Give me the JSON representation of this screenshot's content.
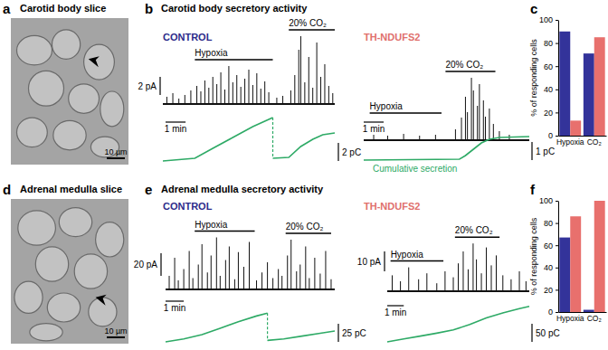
{
  "figure": {
    "image_panels": [
      {
        "letter": "a",
        "title": "Carotid body slice",
        "scale_bar": "10 µm"
      },
      {
        "letter": "d",
        "title": "Adrenal medulla slice",
        "scale_bar": "10 µm"
      }
    ],
    "trace_panels": [
      {
        "letter": "b",
        "title": "Carotid body secretory activity",
        "traces": [
          {
            "condition": "CONTROL",
            "color": "#2b2b8a",
            "xlim": [
              0,
              8.6
            ],
            "ylim": [
              0,
              9
            ],
            "stimuli": [
              {
                "label": "Hypoxia",
                "start": 1.6,
                "end": 5.5
              },
              {
                "label": "20% CO₂",
                "start": 6.3,
                "end": 8.6
              }
            ],
            "spike_times": [
              0.2,
              0.5,
              0.8,
              1.1,
              1.4,
              1.7,
              1.9,
              2.1,
              2.3,
              2.5,
              2.7,
              2.9,
              3.1,
              3.3,
              3.5,
              3.7,
              3.9,
              4.1,
              4.3,
              4.5,
              4.7,
              4.9,
              5.1,
              5.3,
              5.7,
              6.0,
              6.4,
              6.6,
              6.8,
              6.9,
              7.1,
              7.3,
              7.5,
              7.7,
              7.9,
              8.1,
              8.3,
              8.5
            ],
            "spike_amplitudes": [
              0.8,
              1.2,
              0.6,
              1.0,
              1.5,
              2.0,
              1.4,
              2.6,
              1.8,
              3.0,
              2.2,
              3.5,
              1.6,
              4.2,
              2.4,
              3.2,
              1.9,
              2.8,
              3.8,
              2.1,
              3.4,
              1.7,
              2.5,
              1.3,
              0.7,
              0.9,
              1.5,
              3.2,
              6.0,
              7.5,
              2.4,
              5.2,
              1.8,
              6.8,
              3.0,
              4.4,
              2.0,
              1.2
            ],
            "cumulative": {
              "x": [
                0,
                1.6,
                2.5,
                3.5,
                4.5,
                5.5,
                null,
                5.5,
                6.3,
                6.9,
                7.5,
                8.0,
                8.6
              ],
              "y": [
                0,
                0.3,
                1.4,
                2.6,
                3.8,
                4.8,
                null,
                0.3,
                0.4,
                1.6,
                2.4,
                2.9,
                3.1
              ],
              "ylim": [
                0,
                6
              ],
              "color": "#2eaa66"
            },
            "amplitude_scale": {
              "value": 2,
              "label": "2 pA"
            },
            "time_scale": {
              "value": 1,
              "label": "1 min"
            },
            "charge_scale": {
              "value": 2,
              "label": "2 pC"
            }
          },
          {
            "condition": "TH-NDUFS2",
            "color": "#e0706c",
            "xlim": [
              0,
              8.3
            ],
            "ylim": [
              0,
              9
            ],
            "stimuli": [
              {
                "label": "Hypoxia",
                "start": 0.3,
                "end": 3.9
              },
              {
                "label": "20% CO₂",
                "start": 4.1,
                "end": 6.6
              }
            ],
            "spike_times": [
              0.5,
              1.2,
              2.0,
              2.8,
              3.6,
              4.6,
              4.9,
              5.1,
              5.2,
              5.4,
              5.5,
              5.7,
              5.8,
              6.0,
              6.1,
              6.3,
              6.5,
              6.8,
              7.3
            ],
            "spike_amplitudes": [
              0.6,
              0.5,
              0.7,
              0.5,
              0.6,
              1.2,
              2.5,
              4.8,
              3.1,
              6.9,
              5.5,
              3.8,
              6.2,
              4.4,
              2.6,
              3.5,
              1.8,
              1.0,
              0.6
            ],
            "cumulative": {
              "x": [
                0,
                4.8,
                5.1,
                5.5,
                5.9,
                6.3,
                6.8,
                8.3
              ],
              "y": [
                0,
                0.05,
                0.25,
                0.6,
                0.95,
                1.15,
                1.25,
                1.3
              ],
              "ylim": [
                0,
                2
              ],
              "color": "#2eaa66",
              "label": "Cumulative secretion"
            },
            "time_scale": {
              "value": 1,
              "label": "1 min"
            },
            "charge_scale": {
              "value": 1,
              "label": "1 pC"
            }
          }
        ]
      },
      {
        "letter": "e",
        "title": "Adrenal medulla secretory activity",
        "traces": [
          {
            "condition": "CONTROL",
            "color": "#2b2b8a",
            "xlim": [
              0,
              9.3
            ],
            "ylim": [
              0,
              60
            ],
            "stimuli": [
              {
                "label": "Hypoxia",
                "start": 1.6,
                "end": 4.9
              },
              {
                "label": "20% CO₂",
                "start": 6.6,
                "end": 9.1
              }
            ],
            "spike_times": [
              0.2,
              0.5,
              0.7,
              1.0,
              1.3,
              1.5,
              1.8,
              2.0,
              2.3,
              2.5,
              2.8,
              3.0,
              3.3,
              3.5,
              3.8,
              4.0,
              4.3,
              4.6,
              5.0,
              5.3,
              5.6,
              5.9,
              6.2,
              6.4,
              6.7,
              6.9,
              7.2,
              7.4,
              7.7,
              7.9,
              8.2,
              8.5,
              8.8,
              9.1
            ],
            "spike_amplitudes": [
              12,
              28,
              8,
              18,
              34,
              10,
              22,
              40,
              15,
              30,
              46,
              12,
              26,
              38,
              9,
              33,
              20,
              42,
              8,
              15,
              24,
              10,
              18,
              12,
              30,
              44,
              16,
              22,
              38,
              10,
              28,
              14,
              34,
              9
            ],
            "cumulative": {
              "x": [
                0,
                1.0,
                2.0,
                3.0,
                4.0,
                5.0,
                5.6,
                null,
                5.6,
                6.5,
                7.5,
                8.5,
                9.3
              ],
              "y": [
                0,
                4,
                10,
                19,
                28,
                36,
                40,
                null,
                2,
                4,
                8,
                12,
                15
              ],
              "ylim": [
                0,
                44
              ],
              "color": "#2eaa66"
            },
            "amplitude_scale": {
              "value": 20,
              "label": "20 pA"
            },
            "time_scale": {
              "value": 1,
              "label": "1 min"
            },
            "charge_scale": {
              "value": 25,
              "label": "25 pC"
            }
          },
          {
            "condition": "TH-NDUFS2",
            "color": "#e0706c",
            "xlim": [
              0,
              8.6
            ],
            "ylim": [
              0,
              30
            ],
            "stimuli": [
              {
                "label": "Hypoxia",
                "start": 0.2,
                "end": 3.4
              },
              {
                "label": "20% CO₂",
                "start": 4.1,
                "end": 6.8
              }
            ],
            "spike_times": [
              0.3,
              0.8,
              1.3,
              1.9,
              2.4,
              3.0,
              3.5,
              4.0,
              4.3,
              4.6,
              4.9,
              5.2,
              5.4,
              5.7,
              6.0,
              6.3,
              6.6,
              7.0,
              7.5,
              8.0,
              8.4
            ],
            "spike_amplitudes": [
              8,
              5,
              12,
              6,
              9,
              4,
              10,
              7,
              14,
              20,
              11,
              24,
              16,
              9,
              22,
              13,
              18,
              8,
              6,
              10,
              5
            ],
            "cumulative": {
              "x": [
                0,
                1.0,
                2.0,
                3.0,
                4.0,
                5.0,
                6.0,
                7.0,
                8.0,
                8.6
              ],
              "y": [
                0,
                8,
                16,
                24,
                33,
                48,
                66,
                80,
                92,
                98
              ],
              "ylim": [
                0,
                120
              ],
              "color": "#2eaa66"
            },
            "amplitude_scale": {
              "value": 10,
              "label": "10 pA"
            },
            "time_scale": {
              "value": 1,
              "label": "1 min"
            },
            "charge_scale": {
              "value": 50,
              "label": "50 pC"
            }
          }
        ]
      }
    ],
    "chart_letters": [
      "c",
      "f"
    ]
  },
  "chart_data": [
    {
      "type": "bar",
      "categories": [
        "Hypoxia",
        "CO₂"
      ],
      "series": [
        {
          "color": "#33339a",
          "values": [
            90,
            71
          ]
        },
        {
          "color": "#e8706d",
          "values": [
            13,
            85
          ]
        }
      ],
      "ylabel": "% of responding cells",
      "ylim": [
        0,
        100
      ],
      "yticks": [
        0,
        20,
        40,
        60,
        80,
        100
      ]
    },
    {
      "type": "bar",
      "categories": [
        "Hypoxia",
        "CO₂"
      ],
      "series": [
        {
          "color": "#33339a",
          "values": [
            67,
            2
          ]
        },
        {
          "color": "#e8706d",
          "values": [
            86,
            100
          ]
        }
      ],
      "ylabel": "% of responding cells",
      "ylim": [
        0,
        100
      ],
      "yticks": [
        0,
        20,
        40,
        60,
        80,
        100
      ]
    }
  ]
}
